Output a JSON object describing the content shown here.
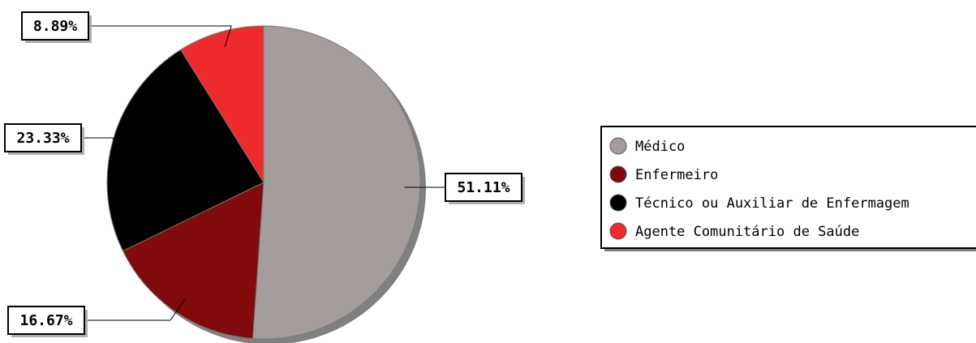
{
  "chart_data": {
    "type": "pie",
    "title": "",
    "slices": [
      {
        "name": "Médico",
        "value": 51.11,
        "label": "51.11%",
        "color": "#a59d9c"
      },
      {
        "name": "Enfermeiro",
        "value": 16.67,
        "label": "16.67%",
        "color": "#800a0c"
      },
      {
        "name": "Técnico ou Auxiliar de Enfermagem",
        "value": 23.33,
        "label": "23.33%",
        "color": "#000000"
      },
      {
        "name": "Agente Comunitário de Saúde",
        "value": 8.89,
        "label": "8.89%",
        "color": "#ee2a2c"
      }
    ],
    "legend_position": "right"
  }
}
